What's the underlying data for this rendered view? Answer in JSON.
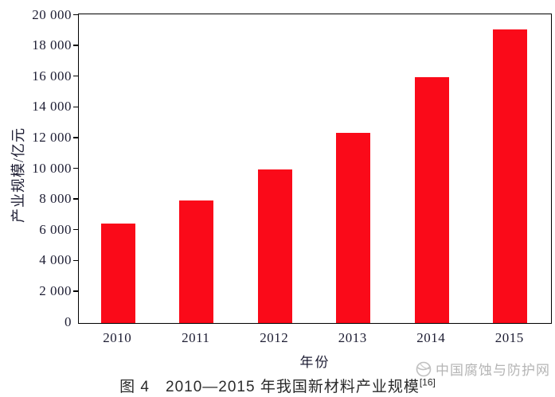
{
  "chart_data": {
    "type": "bar",
    "categories": [
      "2010",
      "2011",
      "2012",
      "2013",
      "2014",
      "2015"
    ],
    "values": [
      6500,
      8000,
      10000,
      12400,
      16000,
      19100
    ],
    "title": "",
    "xlabel": "年份",
    "ylabel": "产业规模/亿元",
    "ylim": [
      0,
      20000
    ],
    "ytick_step": 2000,
    "ytick_labels": [
      "0",
      "2 000",
      "4 000",
      "6 000",
      "8 000",
      "10 000",
      "12 000",
      "14 000",
      "16 000",
      "18 000",
      "20 000"
    ],
    "bar_color": "#fa0a19",
    "axis_color": "#000000",
    "tick_text_color": "#1d1d33",
    "grid": false,
    "legend": "none"
  },
  "caption": {
    "text": "图 4　2010—2015 年我国新材料产业规模",
    "superscript": "[16]"
  },
  "watermark": {
    "text": "中国腐蚀与防护网",
    "color": "#b5b5b5"
  }
}
